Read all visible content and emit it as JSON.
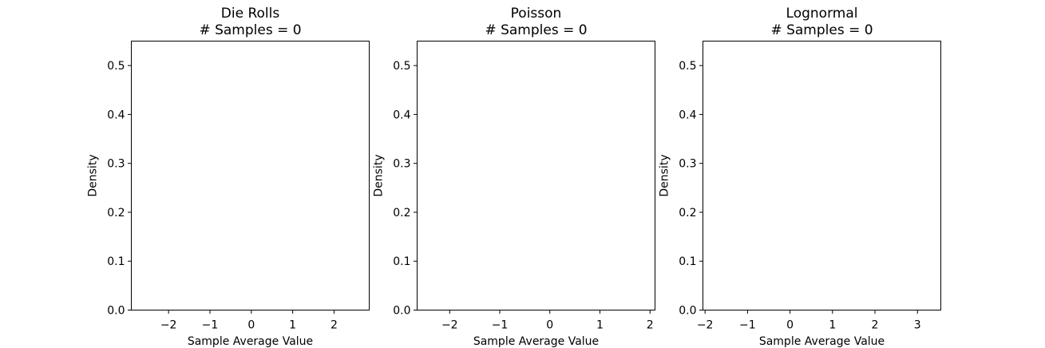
{
  "chart_data": [
    {
      "type": "bar",
      "title": "Die Rolls",
      "subtitle": "# Samples = 0",
      "xlabel": "Sample Average Value",
      "ylabel": "Density",
      "xlim": [
        -2.9,
        2.85
      ],
      "ylim": [
        0,
        0.55
      ],
      "xticks": [
        -2,
        -1,
        0,
        1,
        2
      ],
      "xtick_labels": [
        "−2",
        "−1",
        "0",
        "1",
        "2"
      ],
      "yticks": [
        0,
        0.1,
        0.2,
        0.3,
        0.4,
        0.5
      ],
      "ytick_labels": [
        "0.0",
        "0.1",
        "0.2",
        "0.3",
        "0.4",
        "0.5"
      ],
      "values": [],
      "grid": false
    },
    {
      "type": "bar",
      "title": "Poisson",
      "subtitle": "# Samples = 0",
      "xlabel": "Sample Average Value",
      "ylabel": "Density",
      "xlim": [
        -2.65,
        2.1
      ],
      "ylim": [
        0,
        0.55
      ],
      "xticks": [
        -2,
        -1,
        0,
        1,
        2
      ],
      "xtick_labels": [
        "−2",
        "−1",
        "0",
        "1",
        "2"
      ],
      "yticks": [
        0,
        0.1,
        0.2,
        0.3,
        0.4,
        0.5
      ],
      "ytick_labels": [
        "0.0",
        "0.1",
        "0.2",
        "0.3",
        "0.4",
        "0.5"
      ],
      "values": [],
      "grid": false
    },
    {
      "type": "bar",
      "title": "Lognormal",
      "subtitle": "# Samples = 0",
      "xlabel": "Sample Average Value",
      "ylabel": "Density",
      "xlim": [
        -2.05,
        3.55
      ],
      "ylim": [
        0,
        0.55
      ],
      "xticks": [
        -2,
        -1,
        0,
        1,
        2,
        3
      ],
      "xtick_labels": [
        "−2",
        "−1",
        "0",
        "1",
        "2",
        "3"
      ],
      "yticks": [
        0,
        0.1,
        0.2,
        0.3,
        0.4,
        0.5
      ],
      "ytick_labels": [
        "0.0",
        "0.1",
        "0.2",
        "0.3",
        "0.4",
        "0.5"
      ],
      "values": [],
      "grid": false
    }
  ]
}
